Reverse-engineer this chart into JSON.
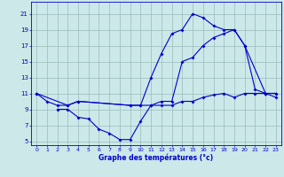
{
  "xlabel": "Graphe des températures (°c)",
  "background_color": "#cce8e8",
  "grid_color": "#99bbbb",
  "line_color": "#0000cc",
  "ylim": [
    4.5,
    22.5
  ],
  "xlim": [
    -0.5,
    23.5
  ],
  "yticks": [
    5,
    7,
    9,
    11,
    13,
    15,
    17,
    19,
    21
  ],
  "xticks": [
    0,
    1,
    2,
    3,
    4,
    5,
    6,
    7,
    8,
    9,
    10,
    11,
    12,
    13,
    14,
    15,
    16,
    17,
    18,
    19,
    20,
    21,
    22,
    23
  ],
  "line1_x": [
    0,
    1,
    2,
    3,
    4,
    9,
    10,
    11,
    12,
    13,
    14,
    15,
    16,
    17,
    18,
    19,
    20,
    21,
    22,
    23
  ],
  "line1_y": [
    11,
    10,
    9.5,
    9.5,
    10,
    9.5,
    9.5,
    13,
    16,
    18.5,
    19,
    21,
    20.5,
    19.5,
    19,
    19,
    17,
    11.5,
    11,
    10.5
  ],
  "line2_x": [
    0,
    3,
    4,
    9,
    10,
    11,
    12,
    13,
    14,
    15,
    16,
    17,
    18,
    19,
    20,
    22,
    23
  ],
  "line2_y": [
    11,
    9.5,
    10,
    9.5,
    9.5,
    9.5,
    10,
    10,
    15,
    15.5,
    17,
    18,
    18.5,
    19,
    17,
    11,
    11
  ],
  "line3_x": [
    2,
    3,
    4,
    5,
    6,
    7,
    8,
    9,
    10,
    11,
    12,
    13,
    14,
    15,
    16,
    17,
    18,
    19,
    20,
    21,
    22,
    23
  ],
  "line3_y": [
    9,
    9,
    8,
    7.8,
    6.5,
    6,
    5.2,
    5.2,
    7.5,
    9.5,
    9.5,
    9.5,
    10,
    10,
    10.5,
    10.8,
    11,
    10.5,
    11,
    11,
    11,
    11
  ]
}
